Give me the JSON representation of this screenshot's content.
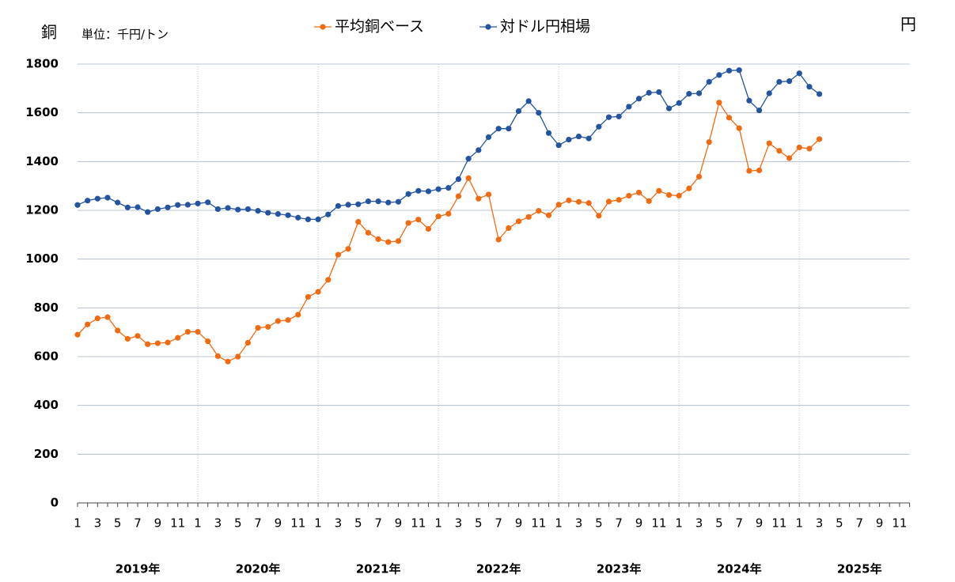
{
  "chart_data": {
    "type": "line",
    "left_label": "銅",
    "unit": "単位：千円/トン",
    "right_label": "円",
    "categories": [
      "1",
      null,
      "3",
      null,
      "5",
      null,
      "7",
      null,
      "9",
      null,
      "11",
      null,
      "1",
      null,
      "3",
      null,
      "5",
      null,
      "7",
      null,
      "9",
      null,
      "11",
      null,
      "1",
      null,
      "3",
      null,
      "5",
      null,
      "7",
      null,
      "9",
      null,
      "11",
      null,
      "1",
      null,
      "3",
      null,
      "5",
      null,
      "7",
      null,
      "9",
      null,
      "11",
      null,
      "1",
      null,
      "3",
      null,
      "5",
      null,
      "7",
      null,
      "9",
      null,
      "11",
      null,
      "1",
      null,
      "3",
      null,
      "5",
      null,
      "7",
      null,
      "9",
      null,
      "11",
      null,
      "1",
      null,
      "3",
      null,
      "5",
      null,
      "7",
      null,
      "9",
      null,
      "11",
      null
    ],
    "year_labels": [
      "2019年",
      "2020年",
      "2021年",
      "2022年",
      "2023年",
      "2024年",
      "2025年"
    ],
    "series": [
      {
        "name": "平均銅ベース",
        "color": "#f26a10",
        "values": [
          690,
          732,
          757,
          762,
          707,
          673,
          685,
          651,
          655,
          658,
          677,
          702,
          702,
          663,
          602,
          580,
          600,
          657,
          718,
          722,
          746,
          750,
          772,
          845,
          866,
          915,
          1018,
          1042,
          1153,
          1108,
          1082,
          1070,
          1074,
          1148,
          1162,
          1124,
          1175,
          1186,
          1258,
          1332,
          1248,
          1265,
          1080,
          1127,
          1155,
          1173,
          1198,
          1180,
          1223,
          1241,
          1235,
          1230,
          1178,
          1236,
          1243,
          1260,
          1273,
          1238,
          1280,
          1263,
          1260,
          1290,
          1338,
          1480,
          1642,
          1580,
          1537,
          1362,
          1364,
          1475,
          1444,
          1414,
          1458,
          1453,
          1492,
          null,
          null,
          null,
          null,
          null,
          null,
          null,
          null,
          null
        ]
      },
      {
        "name": "対ドル円相場",
        "color": "#2453a0",
        "values": [
          1222,
          1240,
          1248,
          1252,
          1232,
          1212,
          1213,
          1193,
          1205,
          1212,
          1222,
          1223,
          1228,
          1233,
          1205,
          1210,
          1203,
          1205,
          1198,
          1190,
          1185,
          1180,
          1170,
          1163,
          1163,
          1183,
          1218,
          1223,
          1225,
          1237,
          1237,
          1232,
          1235,
          1267,
          1280,
          1278,
          1287,
          1292,
          1328,
          1412,
          1447,
          1500,
          1535,
          1535,
          1607,
          1648,
          1600,
          1517,
          1467,
          1490,
          1503,
          1495,
          1543,
          1582,
          1585,
          1625,
          1658,
          1682,
          1685,
          1618,
          1640,
          1678,
          1680,
          1727,
          1755,
          1773,
          1775,
          1650,
          1610,
          1680,
          1727,
          1730,
          1762,
          1707,
          1677,
          null,
          null,
          null,
          null,
          null,
          null,
          null,
          null,
          null
        ]
      }
    ],
    "ylim": [
      0,
      1800
    ],
    "yticks": [
      0,
      200,
      400,
      600,
      800,
      1000,
      1200,
      1400,
      1600,
      1800
    ],
    "grid": true
  }
}
